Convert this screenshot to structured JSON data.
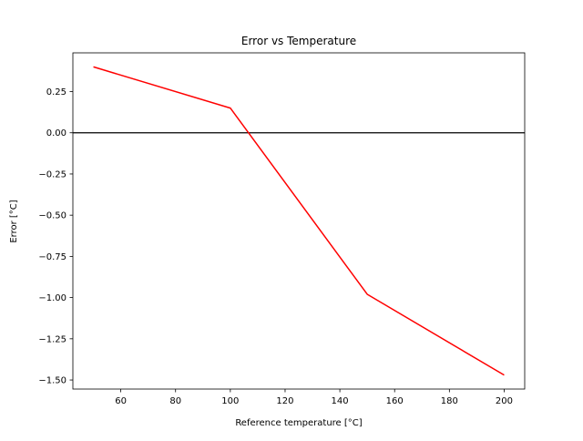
{
  "chart_data": {
    "type": "line",
    "title": "Error vs Temperature",
    "xlabel": "Reference temperature [°C]",
    "ylabel": "Error [°C]",
    "xlim": [
      42.5,
      207.5
    ],
    "ylim": [
      -1.555,
      0.485
    ],
    "xticks": [
      60,
      80,
      100,
      120,
      140,
      160,
      180,
      200
    ],
    "xtick_labels": [
      "60",
      "80",
      "100",
      "120",
      "140",
      "160",
      "180",
      "200"
    ],
    "yticks": [
      0.25,
      0.0,
      -0.25,
      -0.5,
      -0.75,
      -1.0,
      -1.25,
      -1.5
    ],
    "ytick_labels": [
      "0.25",
      "0.00",
      "−0.25",
      "−0.50",
      "−0.75",
      "−1.00",
      "−1.25",
      "−1.50"
    ],
    "grid": false,
    "reference_line": {
      "y": 0,
      "color": "#000000"
    },
    "series": [
      {
        "color": "#ff0000",
        "x": [
          50,
          100,
          150,
          200
        ],
        "y": [
          0.4,
          0.15,
          -0.98,
          -1.47
        ]
      }
    ]
  }
}
